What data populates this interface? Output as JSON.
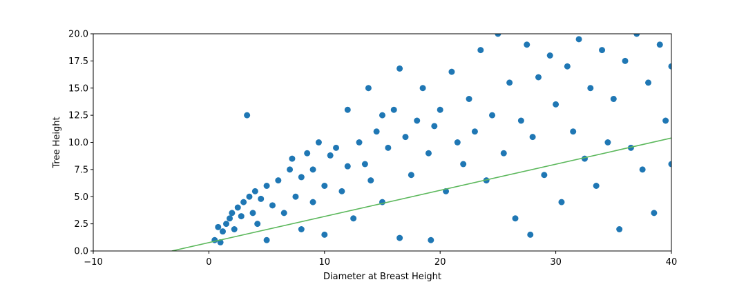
{
  "chart_data": {
    "type": "scatter",
    "title": "",
    "xlabel": "Diameter at Breast Height",
    "ylabel": "Tree Height",
    "xlim": [
      -10,
      40
    ],
    "ylim": [
      0,
      20
    ],
    "xticks": [
      -10,
      0,
      10,
      20,
      30,
      40
    ],
    "xtick_labels": [
      "−10",
      "0",
      "10",
      "20",
      "30",
      "40"
    ],
    "yticks": [
      0,
      2.5,
      5,
      7.5,
      10,
      12.5,
      15,
      17.5,
      20
    ],
    "ytick_labels": [
      "0.0",
      "2.5",
      "5.0",
      "7.5",
      "10.0",
      "12.5",
      "15.0",
      "17.5",
      "20.0"
    ],
    "grid": false,
    "scatter_color": "#1f77b4",
    "fit_line_color": "#5cb85c",
    "series": [
      {
        "type": "scatter",
        "points": [
          [
            0.5,
            1.0
          ],
          [
            0.8,
            2.2
          ],
          [
            1.0,
            0.8
          ],
          [
            1.2,
            1.8
          ],
          [
            1.5,
            2.5
          ],
          [
            1.8,
            3.0
          ],
          [
            2.0,
            3.5
          ],
          [
            2.2,
            2.0
          ],
          [
            2.5,
            4.0
          ],
          [
            2.8,
            3.2
          ],
          [
            3.0,
            4.5
          ],
          [
            3.3,
            12.5
          ],
          [
            3.5,
            5.0
          ],
          [
            3.8,
            3.5
          ],
          [
            4.0,
            5.5
          ],
          [
            4.2,
            2.5
          ],
          [
            4.5,
            4.8
          ],
          [
            5.0,
            1.0
          ],
          [
            5.0,
            6.0
          ],
          [
            5.5,
            4.2
          ],
          [
            6.0,
            6.5
          ],
          [
            6.5,
            3.5
          ],
          [
            7.0,
            7.5
          ],
          [
            7.2,
            8.5
          ],
          [
            7.5,
            5.0
          ],
          [
            8.0,
            6.8
          ],
          [
            8.0,
            2.0
          ],
          [
            8.5,
            9.0
          ],
          [
            9.0,
            7.5
          ],
          [
            9.0,
            4.5
          ],
          [
            9.5,
            10.0
          ],
          [
            10.0,
            6.0
          ],
          [
            10.0,
            1.5
          ],
          [
            10.5,
            8.8
          ],
          [
            11.0,
            9.5
          ],
          [
            11.5,
            5.5
          ],
          [
            12.0,
            13.0
          ],
          [
            12.0,
            7.8
          ],
          [
            12.5,
            3.0
          ],
          [
            13.0,
            10.0
          ],
          [
            13.5,
            8.0
          ],
          [
            13.8,
            15.0
          ],
          [
            14.0,
            6.5
          ],
          [
            14.5,
            11.0
          ],
          [
            15.0,
            12.5
          ],
          [
            15.0,
            4.5
          ],
          [
            15.5,
            9.5
          ],
          [
            16.0,
            13.0
          ],
          [
            16.5,
            16.8
          ],
          [
            16.5,
            1.2
          ],
          [
            17.0,
            10.5
          ],
          [
            17.5,
            7.0
          ],
          [
            18.0,
            12.0
          ],
          [
            18.5,
            15.0
          ],
          [
            19.0,
            9.0
          ],
          [
            19.2,
            1.0
          ],
          [
            19.5,
            11.5
          ],
          [
            20.0,
            13.0
          ],
          [
            20.5,
            5.5
          ],
          [
            21.0,
            16.5
          ],
          [
            21.5,
            10.0
          ],
          [
            22.0,
            8.0
          ],
          [
            22.5,
            14.0
          ],
          [
            23.0,
            11.0
          ],
          [
            23.5,
            18.5
          ],
          [
            24.0,
            6.5
          ],
          [
            24.5,
            12.5
          ],
          [
            25.0,
            20.0
          ],
          [
            25.5,
            9.0
          ],
          [
            26.0,
            15.5
          ],
          [
            26.5,
            3.0
          ],
          [
            27.0,
            12.0
          ],
          [
            27.5,
            19.0
          ],
          [
            27.8,
            1.5
          ],
          [
            28.0,
            10.5
          ],
          [
            28.5,
            16.0
          ],
          [
            29.0,
            7.0
          ],
          [
            29.5,
            18.0
          ],
          [
            30.0,
            13.5
          ],
          [
            30.5,
            4.5
          ],
          [
            31.0,
            17.0
          ],
          [
            31.5,
            11.0
          ],
          [
            32.0,
            19.5
          ],
          [
            32.5,
            8.5
          ],
          [
            33.0,
            15.0
          ],
          [
            33.5,
            6.0
          ],
          [
            34.0,
            18.5
          ],
          [
            34.5,
            10.0
          ],
          [
            35.0,
            14.0
          ],
          [
            35.5,
            2.0
          ],
          [
            36.0,
            17.5
          ],
          [
            36.5,
            9.5
          ],
          [
            37.0,
            20.0
          ],
          [
            37.5,
            7.5
          ],
          [
            38.0,
            15.5
          ],
          [
            38.5,
            3.5
          ],
          [
            39.0,
            19.0
          ],
          [
            39.5,
            12.0
          ],
          [
            40.0,
            8.0
          ],
          [
            40.0,
            17.0
          ]
        ]
      },
      {
        "type": "line",
        "points": [
          [
            -3.2,
            0.0
          ],
          [
            40.0,
            10.4
          ]
        ]
      }
    ]
  }
}
